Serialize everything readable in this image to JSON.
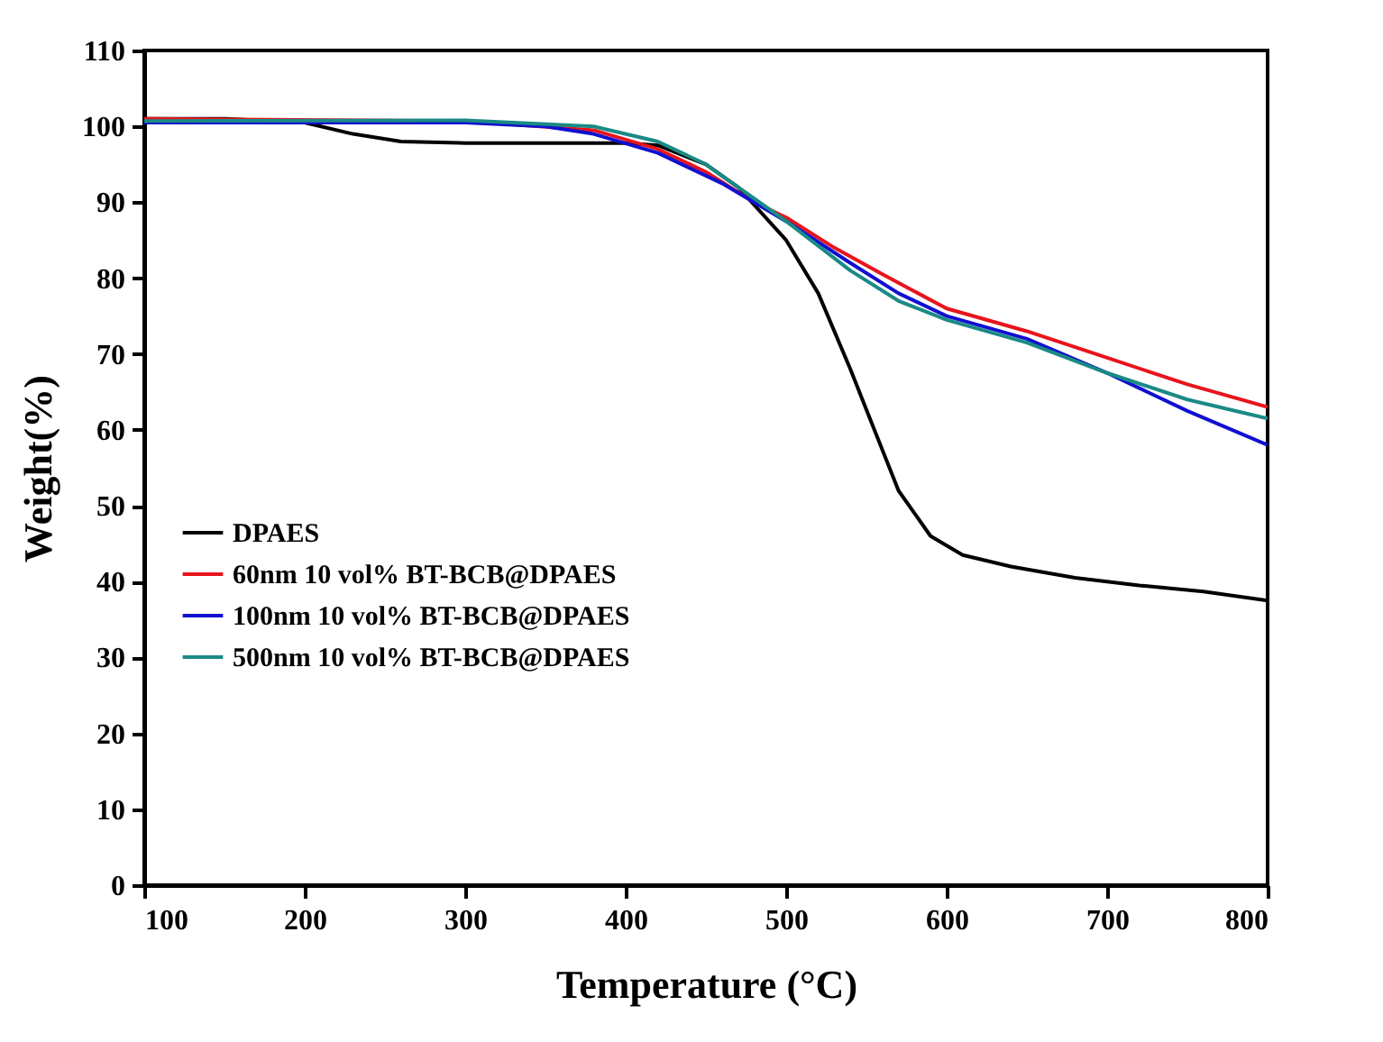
{
  "chart_data": {
    "type": "line",
    "xlabel": "Temperature (°C)",
    "ylabel": "Weight(%)",
    "xlim": [
      100,
      800
    ],
    "xticks": [
      100,
      200,
      300,
      400,
      500,
      600,
      700,
      800
    ],
    "ylim": [
      0,
      110
    ],
    "yticks": [
      0,
      10,
      20,
      30,
      40,
      50,
      60,
      70,
      80,
      90,
      100,
      110
    ],
    "grid": false,
    "legend": "bottom left",
    "marker": "none",
    "line_style": "solid",
    "series": [
      {
        "name": "DPAES",
        "color": "#000000",
        "x": [
          100,
          150,
          200,
          230,
          260,
          300,
          400,
          420,
          450,
          470,
          500,
          520,
          540,
          555,
          570,
          590,
          610,
          640,
          680,
          720,
          760,
          800
        ],
        "values": [
          101,
          101,
          100.5,
          99,
          98,
          97.8,
          97.8,
          97.5,
          95,
          92,
          85,
          78,
          68,
          60,
          52,
          46,
          43.5,
          42,
          40.5,
          39.5,
          38.7,
          37.5
        ]
      },
      {
        "name": "60nm 10 vol% BT-BCB@DPAES",
        "color": "#e8141c",
        "x": [
          100,
          300,
          380,
          420,
          450,
          480,
          500,
          530,
          560,
          600,
          650,
          700,
          750,
          800
        ],
        "values": [
          101,
          100.7,
          99.5,
          97,
          94,
          90,
          88,
          84,
          80.5,
          76,
          73,
          69.5,
          66,
          63
        ]
      },
      {
        "name": "100nm 10 vol% BT-BCB@DPAES",
        "color": "#1010d0",
        "x": [
          100,
          300,
          350,
          380,
          420,
          460,
          500,
          540,
          570,
          600,
          650,
          700,
          750,
          800
        ],
        "values": [
          100.5,
          100.5,
          100,
          99,
          96.5,
          92.5,
          87.5,
          82,
          78,
          75,
          72,
          67.5,
          62.5,
          58
        ]
      },
      {
        "name": "500nm 10 vol% BT-BCB@DPAES",
        "color": "#1a8a86",
        "x": [
          100,
          300,
          380,
          420,
          450,
          480,
          500,
          540,
          570,
          600,
          650,
          700,
          750,
          800
        ],
        "values": [
          100.7,
          100.8,
          100,
          98,
          95,
          90.5,
          87.5,
          81,
          77,
          74.5,
          71.5,
          67.5,
          64,
          61.5
        ]
      }
    ]
  }
}
